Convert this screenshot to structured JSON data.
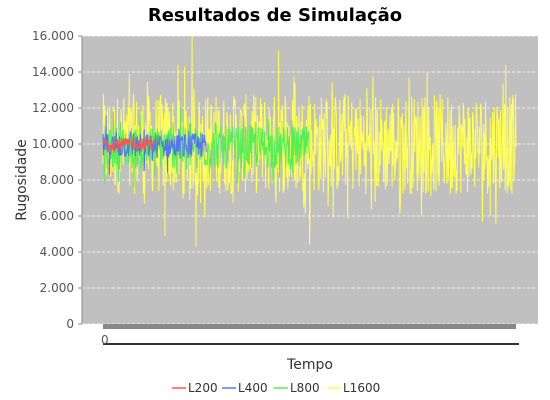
{
  "chart_data": {
    "type": "line",
    "title": "Resultados de Simulação",
    "xlabel": "Tempo",
    "ylabel": "Rugosidade",
    "ylim": [
      0,
      16000
    ],
    "y_ticks": [
      {
        "value": 0,
        "label": "0"
      },
      {
        "value": 2000,
        "label": "2.000"
      },
      {
        "value": 4000,
        "label": "4.000"
      },
      {
        "value": 6000,
        "label": "6.000"
      },
      {
        "value": 8000,
        "label": "8.000"
      },
      {
        "value": 10000,
        "label": "10.000"
      },
      {
        "value": 12000,
        "label": "12.000"
      },
      {
        "value": 14000,
        "label": "14.000"
      },
      {
        "value": 16000,
        "label": "16.000"
      }
    ],
    "x_tick_label": "0",
    "x_range": [
      0,
      1600
    ],
    "grid": true,
    "legend_position": "bottom",
    "series": [
      {
        "name": "L200",
        "color": "#ff5555",
        "x_end": 200,
        "mean": 10000,
        "amp": 350,
        "spikes": []
      },
      {
        "name": "L400",
        "color": "#5577ee",
        "x_end": 400,
        "mean": 9900,
        "amp": 700,
        "spikes": [
          [
            12,
            11600
          ],
          [
            25,
            8300
          ],
          [
            160,
            8500
          ],
          [
            250,
            8400
          ],
          [
            380,
            10600
          ]
        ]
      },
      {
        "name": "L800",
        "color": "#55ee55",
        "x_end": 800,
        "mean": 9800,
        "amp": 1200,
        "spikes": [
          [
            5,
            7800
          ],
          [
            40,
            11800
          ],
          [
            120,
            7600
          ],
          [
            300,
            12000
          ],
          [
            520,
            7800
          ],
          [
            640,
            11400
          ]
        ]
      },
      {
        "name": "L1600",
        "color": "#ffff55",
        "x_end": 1600,
        "mean": 10000,
        "amp": 2800,
        "spikes": [
          [
            345,
            16000
          ],
          [
            360,
            4300
          ],
          [
            240,
            4900
          ],
          [
            800,
            4400
          ],
          [
            680,
            15200
          ],
          [
            1560,
            14400
          ],
          [
            1500,
            6000
          ]
        ]
      }
    ]
  }
}
